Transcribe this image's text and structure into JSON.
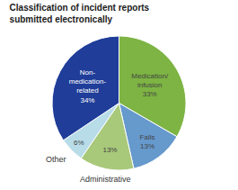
{
  "chart_data": {
    "type": "pie",
    "title": "Classification of incident reports\nsubmitted electronically",
    "categories": [
      null,
      null,
      "Administrative",
      "Other",
      null
    ],
    "values": [
      33,
      13,
      13,
      6,
      34
    ],
    "value_labels": [
      "Medication/\ninfusion\n33%",
      "Falls\n13%",
      "13%",
      "6%",
      "Non-\nmedication-\nrelated\n34%"
    ],
    "colors": [
      "#7db443",
      "#6699cc",
      "#a8c87a",
      "#b8dce8",
      "#1f3d99"
    ]
  }
}
